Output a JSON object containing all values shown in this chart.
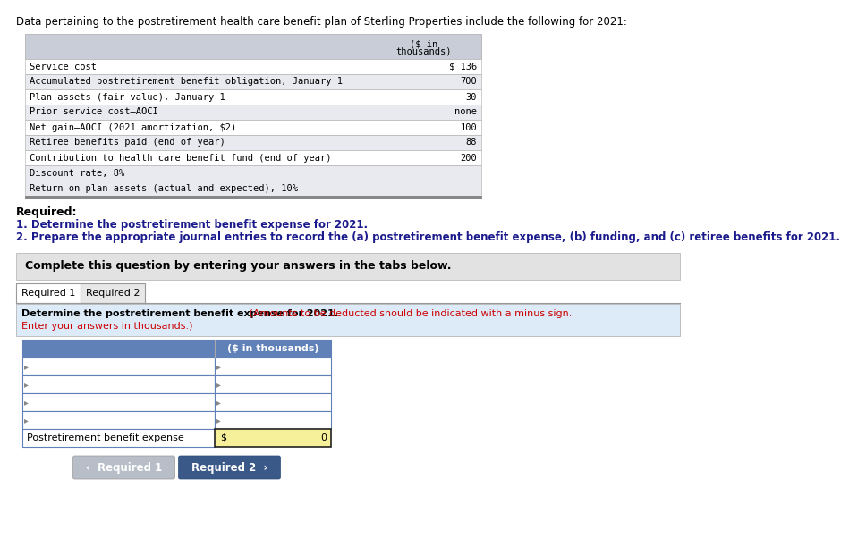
{
  "intro_text": "Data pertaining to the postretirement health care benefit plan of Sterling Properties include the following for 2021:",
  "table1_rows": [
    [
      "Service cost",
      "$ 136"
    ],
    [
      "Accumulated postretirement benefit obligation, January 1",
      "700"
    ],
    [
      "Plan assets (fair value), January 1",
      "30"
    ],
    [
      "Prior service cost–AOCI",
      "none"
    ],
    [
      "Net gain–AOCI (2021 amortization, $2)",
      "100"
    ],
    [
      "Retiree benefits paid (end of year)",
      "88"
    ],
    [
      "Contribution to health care benefit fund (end of year)",
      "200"
    ],
    [
      "Discount rate, 8%",
      ""
    ],
    [
      "Return on plan assets (actual and expected), 10%",
      ""
    ]
  ],
  "required_label": "Required:",
  "required_item1": "1. Determine the postretirement benefit expense for 2021.",
  "required_item2": "2. Prepare the appropriate journal entries to record the (a) postretirement benefit expense, (b) funding, and (c) retiree benefits for 2021.",
  "complete_text": "Complete this question by entering your answers in the tabs below.",
  "tab1_label": "Required 1",
  "tab2_label": "Required 2",
  "instr_black": "Determine the postretirement benefit expense for 2021.",
  "instr_red1": " (Amounts to be deducted should be indicated with a minus sign.",
  "instr_red2": "Enter your answers in thousands.)",
  "table2_header": "($ in thousands)",
  "table2_footer_label": "Postretirement benefit expense",
  "table2_footer_value": "0",
  "table2_footer_prefix": "$",
  "btn1_label": "‹  Required 1",
  "btn2_label": "Required 2  ›",
  "table1_header_bg": "#c8cdd8",
  "table1_alt_bg": "#e8eaef",
  "table1_white_bg": "#ffffff",
  "table2_header_bg": "#6080b8",
  "table2_header_text": "#ffffff",
  "table2_row_bg": "#ffffff",
  "table2_border": "#6080b8",
  "table2_footer_bg": "#f5f099",
  "table2_footer_border": "#222222",
  "btn1_bg": "#b8bec8",
  "btn2_bg": "#3a5888",
  "complete_bg": "#e2e2e2",
  "instruction_bg": "#ddeaf8",
  "tab_active_bg": "#ffffff",
  "tab_inactive_bg": "#e8e8e8",
  "tab_border": "#999999"
}
